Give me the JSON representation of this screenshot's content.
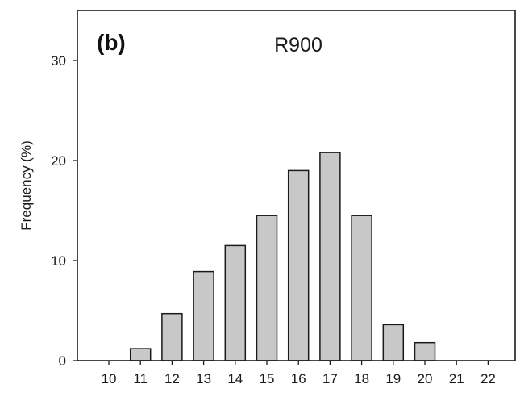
{
  "chart_data": {
    "type": "bar",
    "panel_label": "(b)",
    "title": "R900",
    "xlabel": "",
    "ylabel": "Frequency (%)",
    "categories": [
      "10",
      "11",
      "12",
      "13",
      "14",
      "15",
      "16",
      "17",
      "18",
      "19",
      "20",
      "21",
      "22"
    ],
    "values": [
      0,
      1.2,
      4.7,
      8.9,
      11.5,
      14.5,
      19.0,
      20.8,
      14.5,
      3.6,
      1.8,
      0,
      0
    ],
    "ylim": [
      0,
      35
    ],
    "yticks": [
      0,
      10,
      20,
      30
    ],
    "grid": false,
    "bar_color": "#c8c8c8",
    "edge_color": "#1a1a1a"
  }
}
